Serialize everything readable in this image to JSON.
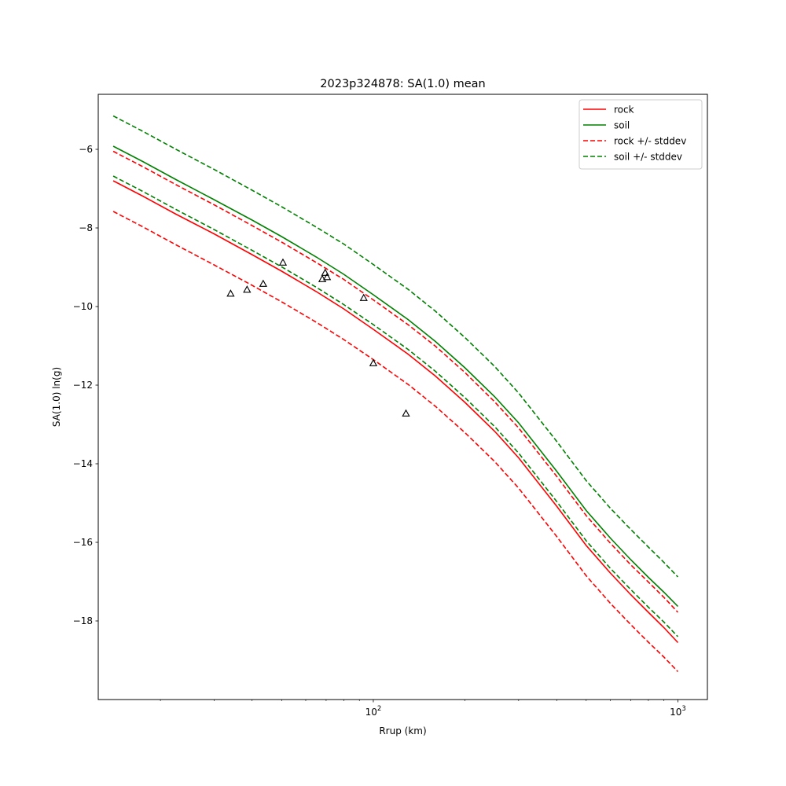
{
  "chart_data": {
    "type": "line",
    "title": "2023p324878: SA(1.0) mean",
    "xlabel": "Rrup (km)",
    "ylabel": "SA(1.0) ln(g)",
    "xscale": "log",
    "xlim": [
      12.5,
      1250
    ],
    "ylim": [
      -20,
      -4.6
    ],
    "grid": false,
    "legend_position": "top-right",
    "x_tick_labels": [
      {
        "base": "10",
        "exp": "2",
        "value": 100
      },
      {
        "base": "10",
        "exp": "3",
        "value": 1000
      }
    ],
    "y_ticks": [
      -6,
      -8,
      -10,
      -12,
      -14,
      -16,
      -18
    ],
    "y_tick_labels": [
      "−6",
      "−8",
      "−10",
      "−12",
      "−14",
      "−16",
      "−18"
    ],
    "x": [
      14,
      17.5,
      22.5,
      30,
      40,
      50,
      65,
      80,
      100,
      130,
      160,
      200,
      250,
      300,
      400,
      500,
      600,
      700,
      800,
      900,
      1000
    ],
    "series": [
      {
        "name": "rock",
        "color": "#ff0000",
        "dash": "solid",
        "values": [
          -6.8,
          -7.19,
          -7.65,
          -8.15,
          -8.68,
          -9.1,
          -9.62,
          -10.06,
          -10.58,
          -11.21,
          -11.77,
          -12.44,
          -13.17,
          -13.85,
          -15.08,
          -16.08,
          -16.78,
          -17.33,
          -17.78,
          -18.17,
          -18.55
        ]
      },
      {
        "name": "soil",
        "color": "#008000",
        "dash": "solid",
        "values": [
          -5.92,
          -6.31,
          -6.77,
          -7.28,
          -7.8,
          -8.22,
          -8.74,
          -9.18,
          -9.7,
          -10.33,
          -10.89,
          -11.56,
          -12.29,
          -12.96,
          -14.19,
          -15.19,
          -15.89,
          -16.44,
          -16.89,
          -17.27,
          -17.63
        ]
      },
      {
        "name": "rock +/- stddev",
        "color": "#ff0000",
        "dash": "dashed",
        "values": [
          -6.05,
          -6.44,
          -6.9,
          -7.41,
          -7.94,
          -8.36,
          -8.88,
          -9.31,
          -9.83,
          -10.46,
          -11.01,
          -11.68,
          -12.42,
          -13.09,
          -14.32,
          -15.32,
          -16.02,
          -16.57,
          -17.01,
          -17.4,
          -17.78
        ]
      },
      {
        "name": "",
        "color": "#ff0000",
        "dash": "dashed",
        "values": [
          -7.58,
          -7.97,
          -8.43,
          -8.94,
          -9.46,
          -9.88,
          -10.4,
          -10.84,
          -11.35,
          -11.98,
          -12.54,
          -13.21,
          -13.94,
          -14.62,
          -15.85,
          -16.85,
          -17.55,
          -18.09,
          -18.54,
          -18.92,
          -19.29
        ]
      },
      {
        "name": "soil +/- stddev",
        "color": "#008000",
        "dash": "dashed",
        "values": [
          -5.15,
          -5.54,
          -6.0,
          -6.51,
          -7.04,
          -7.46,
          -7.98,
          -8.41,
          -8.93,
          -9.56,
          -10.12,
          -10.79,
          -11.52,
          -12.2,
          -13.43,
          -14.43,
          -15.13,
          -15.67,
          -16.12,
          -16.51,
          -16.88
        ]
      },
      {
        "name": "",
        "color": "#008000",
        "dash": "dashed",
        "values": [
          -6.68,
          -7.07,
          -7.53,
          -8.04,
          -8.57,
          -8.99,
          -9.51,
          -9.95,
          -10.46,
          -11.09,
          -11.65,
          -12.32,
          -13.05,
          -13.73,
          -14.96,
          -15.96,
          -16.66,
          -17.2,
          -17.65,
          -18.03,
          -18.4
        ]
      }
    ],
    "observations": {
      "marker": "triangle",
      "points": [
        {
          "x": 34,
          "y": -9.67
        },
        {
          "x": 38.5,
          "y": -9.57
        },
        {
          "x": 43.5,
          "y": -9.42
        },
        {
          "x": 50.5,
          "y": -8.88
        },
        {
          "x": 68,
          "y": -9.3
        },
        {
          "x": 69.5,
          "y": -9.14
        },
        {
          "x": 70.5,
          "y": -9.25
        },
        {
          "x": 93,
          "y": -9.78
        },
        {
          "x": 100,
          "y": -11.44
        },
        {
          "x": 128,
          "y": -12.72
        }
      ]
    },
    "legend": [
      {
        "label": "rock",
        "color": "#ff0000",
        "dash": "solid"
      },
      {
        "label": "soil",
        "color": "#008000",
        "dash": "solid"
      },
      {
        "label": "rock +/- stddev",
        "color": "#ff0000",
        "dash": "dashed"
      },
      {
        "label": "soil +/- stddev",
        "color": "#008000",
        "dash": "dashed"
      }
    ]
  }
}
